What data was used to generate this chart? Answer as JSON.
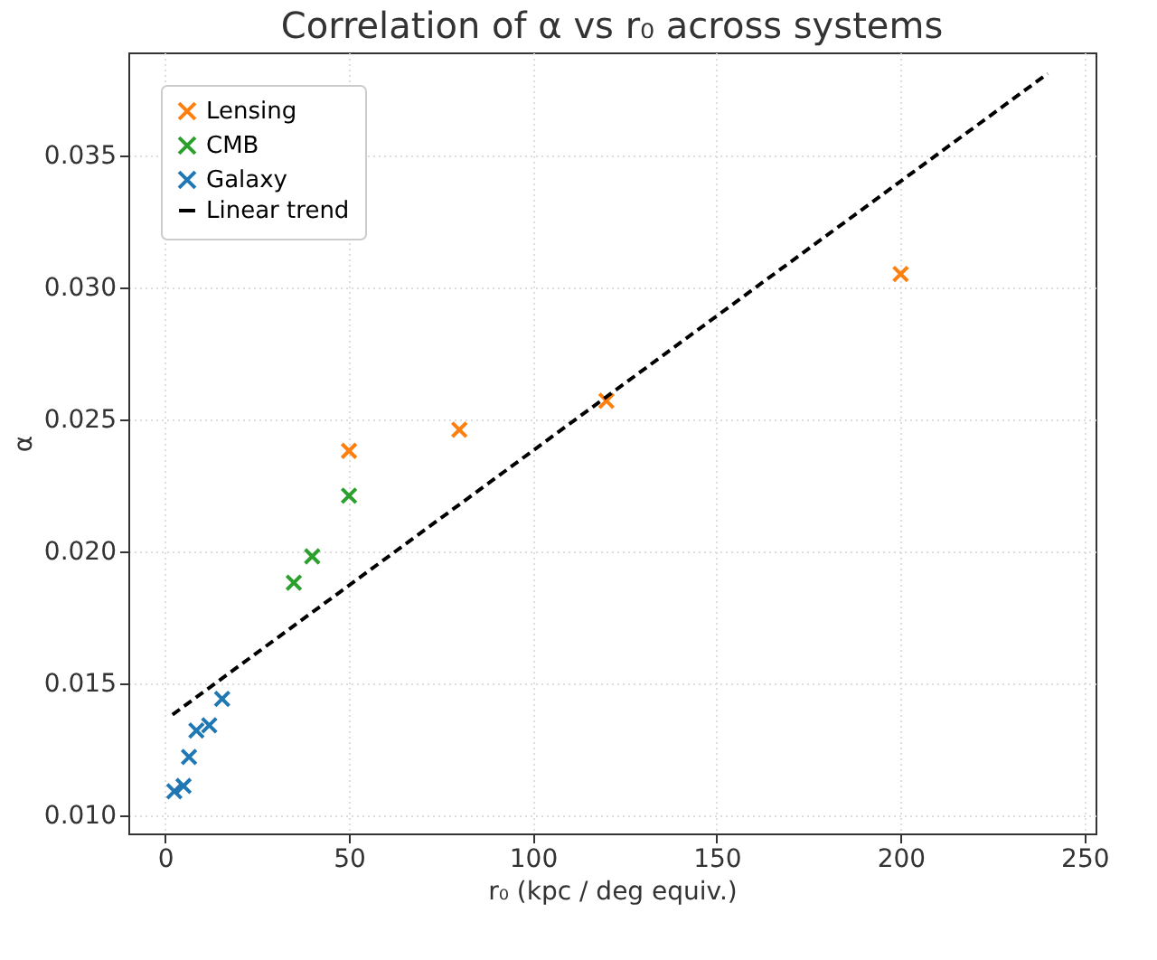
{
  "chart_data": {
    "type": "scatter",
    "title": "Correlation of α vs r₀ across systems",
    "xlabel": "r₀ (kpc / deg equiv.)",
    "ylabel": "α",
    "series": [
      {
        "name": "Lensing",
        "color": "#ff7f0e",
        "x": [
          50,
          80,
          120,
          200
        ],
        "values": [
          0.0238,
          0.0246,
          0.0257,
          0.0305
        ]
      },
      {
        "name": "CMB",
        "color": "#2ca02c",
        "x": [
          35,
          40,
          50
        ],
        "values": [
          0.0188,
          0.0198,
          0.0221
        ]
      },
      {
        "name": "Galaxy",
        "color": "#1f77b4",
        "x": [
          2.5,
          5,
          6.5,
          8.5,
          12,
          15.5
        ],
        "values": [
          0.0109,
          0.0111,
          0.0122,
          0.0132,
          0.0134,
          0.0144
        ]
      },
      {
        "name": "Linear trend",
        "type": "line",
        "line_style": "dashed",
        "marker": "none",
        "color": "#000000",
        "x": [
          2,
          240
        ],
        "values": [
          0.0138,
          0.0381
        ]
      }
    ],
    "marker": "cross",
    "xlim": [
      -10,
      253
    ],
    "ylim": [
      0.0093,
      0.0389
    ],
    "xticks": [
      0,
      50,
      100,
      150,
      200,
      250
    ],
    "yticks": [
      {
        "value": 0.01,
        "label": "0.010"
      },
      0.015,
      {
        "value": 0.02,
        "label": "0.020"
      },
      0.025,
      {
        "value": 0.03,
        "label": "0.030"
      },
      0.035
    ],
    "grid": true,
    "legend": "top left"
  }
}
